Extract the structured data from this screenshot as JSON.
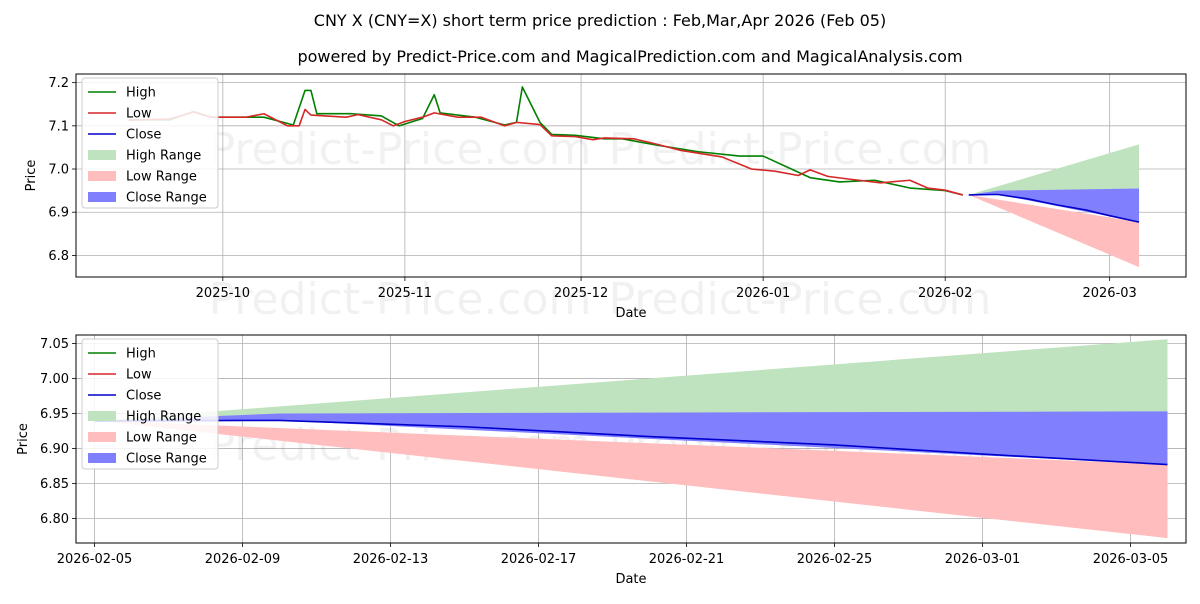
{
  "title": "CNY X (CNY=X) short term price prediction : Feb,Mar,Apr 2026 (Feb 05)",
  "subtitle": "powered by Predict-Price.com and MagicalPrediction.com and MagicalAnalysis.com",
  "watermark": "Predict-Price.com",
  "colors": {
    "high": "#008000",
    "low": "#d62728",
    "close": "#0000cc",
    "high_range": "#bfe3bf",
    "low_range": "#ffbdbd",
    "close_range": "#8080ff",
    "grid": "#b0b0b0"
  },
  "chart_data": [
    {
      "type": "line",
      "title": "CNY X (CNY=X) short term price prediction : Feb,Mar,Apr 2026 (Feb 05)",
      "xlabel": "Date",
      "ylabel": "Price",
      "xlim": [
        "2025-09-06",
        "2026-03-14"
      ],
      "ylim": [
        6.75,
        7.22
      ],
      "x_ticks": [
        "2025-10-01",
        "2025-11-01",
        "2025-12-01",
        "2026-01-01",
        "2026-02-01",
        "2026-03-01"
      ],
      "x_tick_labels": [
        "2025-10",
        "2025-11",
        "2025-12",
        "2026-01",
        "2026-02",
        "2026-03"
      ],
      "y_ticks": [
        6.8,
        6.9,
        7.0,
        7.1,
        7.2
      ],
      "y_tick_labels": [
        "6.8",
        "6.9",
        "7.0",
        "7.1",
        "7.2"
      ],
      "legend": [
        "High",
        "Low",
        "Close",
        "High Range",
        "Low Range",
        "Close Range"
      ],
      "legend_position": "top-left",
      "grid": true,
      "series": [
        {
          "name": "High",
          "x": [
            "2025-09-15",
            "2025-09-22",
            "2025-09-26",
            "2025-09-29",
            "2025-10-08",
            "2025-10-13",
            "2025-10-15",
            "2025-10-16",
            "2025-10-17",
            "2025-10-23",
            "2025-10-28",
            "2025-10-31",
            "2025-11-04",
            "2025-11-06",
            "2025-11-07",
            "2025-11-13",
            "2025-11-18",
            "2025-11-20",
            "2025-11-21",
            "2025-11-24",
            "2025-11-26",
            "2025-11-30",
            "2025-12-05",
            "2025-12-08",
            "2025-12-14",
            "2025-12-21",
            "2025-12-28",
            "2026-01-01",
            "2026-01-09",
            "2026-01-14",
            "2026-01-20",
            "2026-01-26",
            "2026-02-01",
            "2026-02-04"
          ],
          "values": [
            7.114,
            7.114,
            7.133,
            7.12,
            7.12,
            7.102,
            7.182,
            7.182,
            7.128,
            7.128,
            7.123,
            7.1,
            7.117,
            7.172,
            7.13,
            7.12,
            7.102,
            7.108,
            7.19,
            7.108,
            7.08,
            7.078,
            7.07,
            7.07,
            7.055,
            7.04,
            7.03,
            7.03,
            6.98,
            6.97,
            6.974,
            6.956,
            6.95,
            6.94
          ]
        },
        {
          "name": "Low",
          "x": [
            "2025-09-15",
            "2025-09-22",
            "2025-09-26",
            "2025-09-29",
            "2025-10-05",
            "2025-10-08",
            "2025-10-12",
            "2025-10-14",
            "2025-10-15",
            "2025-10-16",
            "2025-10-22",
            "2025-10-24",
            "2025-10-28",
            "2025-10-30",
            "2025-11-01",
            "2025-11-04",
            "2025-11-06",
            "2025-11-10",
            "2025-11-14",
            "2025-11-18",
            "2025-11-20",
            "2025-11-24",
            "2025-11-26",
            "2025-11-30",
            "2025-12-03",
            "2025-12-05",
            "2025-12-10",
            "2025-12-14",
            "2025-12-18",
            "2025-12-25",
            "2025-12-30",
            "2026-01-03",
            "2026-01-07",
            "2026-01-09",
            "2026-01-12",
            "2026-01-16",
            "2026-01-21",
            "2026-01-26",
            "2026-01-29",
            "2026-02-01",
            "2026-02-04"
          ],
          "values": [
            7.113,
            7.116,
            7.132,
            7.12,
            7.12,
            7.128,
            7.1,
            7.1,
            7.138,
            7.125,
            7.12,
            7.126,
            7.114,
            7.1,
            7.11,
            7.12,
            7.13,
            7.12,
            7.12,
            7.1,
            7.108,
            7.103,
            7.077,
            7.075,
            7.068,
            7.072,
            7.07,
            7.057,
            7.043,
            7.028,
            7.0,
            6.995,
            6.985,
            6.998,
            6.983,
            6.976,
            6.968,
            6.974,
            6.956,
            6.951,
            6.94
          ]
        },
        {
          "name": "Close",
          "x": [
            "2026-02-05",
            "2026-02-09",
            "2026-02-10",
            "2026-02-15",
            "2026-02-20",
            "2026-02-25",
            "2026-03-01",
            "2026-03-06"
          ],
          "values": [
            6.94,
            6.941,
            6.941,
            6.931,
            6.917,
            6.905,
            6.892,
            6.877
          ]
        }
      ],
      "bands": [
        {
          "name": "High Range",
          "x": [
            "2026-02-05",
            "2026-03-06"
          ],
          "lower": [
            6.94,
            6.955
          ],
          "upper": [
            6.94,
            7.057
          ]
        },
        {
          "name": "Low Range",
          "x": [
            "2026-02-05",
            "2026-03-06"
          ],
          "lower": [
            6.94,
            6.773
          ],
          "upper": [
            6.94,
            6.877
          ]
        },
        {
          "name": "Close Range",
          "x": [
            "2026-02-05",
            "2026-02-10",
            "2026-03-06"
          ],
          "lower": [
            6.94,
            6.941,
            6.877
          ],
          "upper": [
            6.94,
            6.95,
            6.955
          ]
        }
      ]
    },
    {
      "type": "line",
      "xlabel": "Date",
      "ylabel": "Price",
      "xlim": [
        "2026-02-04.5",
        "2026-03-06.5"
      ],
      "ylim": [
        6.765,
        7.062
      ],
      "x_ticks": [
        "2026-02-05",
        "2026-02-09",
        "2026-02-13",
        "2026-02-17",
        "2026-02-21",
        "2026-02-25",
        "2026-03-01",
        "2026-03-05"
      ],
      "x_tick_labels": [
        "2026-02-05",
        "2026-02-09",
        "2026-02-13",
        "2026-02-17",
        "2026-02-21",
        "2026-02-25",
        "2026-03-01",
        "2026-03-05"
      ],
      "y_ticks": [
        6.8,
        6.85,
        6.9,
        6.95,
        7.0,
        7.05
      ],
      "y_tick_labels": [
        "6.80",
        "6.85",
        "6.90",
        "6.95",
        "7.00",
        "7.05"
      ],
      "legend": [
        "High",
        "Low",
        "Close",
        "High Range",
        "Low Range",
        "Close Range"
      ],
      "legend_position": "top-left",
      "grid": true,
      "series": [
        {
          "name": "Close",
          "x": [
            "2026-02-05",
            "2026-02-09",
            "2026-02-10",
            "2026-02-15",
            "2026-02-20",
            "2026-02-25",
            "2026-03-01",
            "2026-03-06"
          ],
          "values": [
            6.939,
            6.94,
            6.94,
            6.931,
            6.917,
            6.905,
            6.892,
            6.877
          ]
        }
      ],
      "bands": [
        {
          "name": "High Range",
          "x": [
            "2026-02-05",
            "2026-03-06"
          ],
          "lower": [
            6.94,
            6.952
          ],
          "upper": [
            6.94,
            7.056
          ]
        },
        {
          "name": "Low Range",
          "x": [
            "2026-02-05",
            "2026-03-06"
          ],
          "lower": [
            6.94,
            6.772
          ],
          "upper": [
            6.94,
            6.877
          ]
        },
        {
          "name": "Close Range",
          "x": [
            "2026-02-05",
            "2026-02-10",
            "2026-03-06"
          ],
          "lower": [
            6.939,
            6.94,
            6.877
          ],
          "upper": [
            6.939,
            6.95,
            6.953
          ]
        }
      ]
    }
  ]
}
